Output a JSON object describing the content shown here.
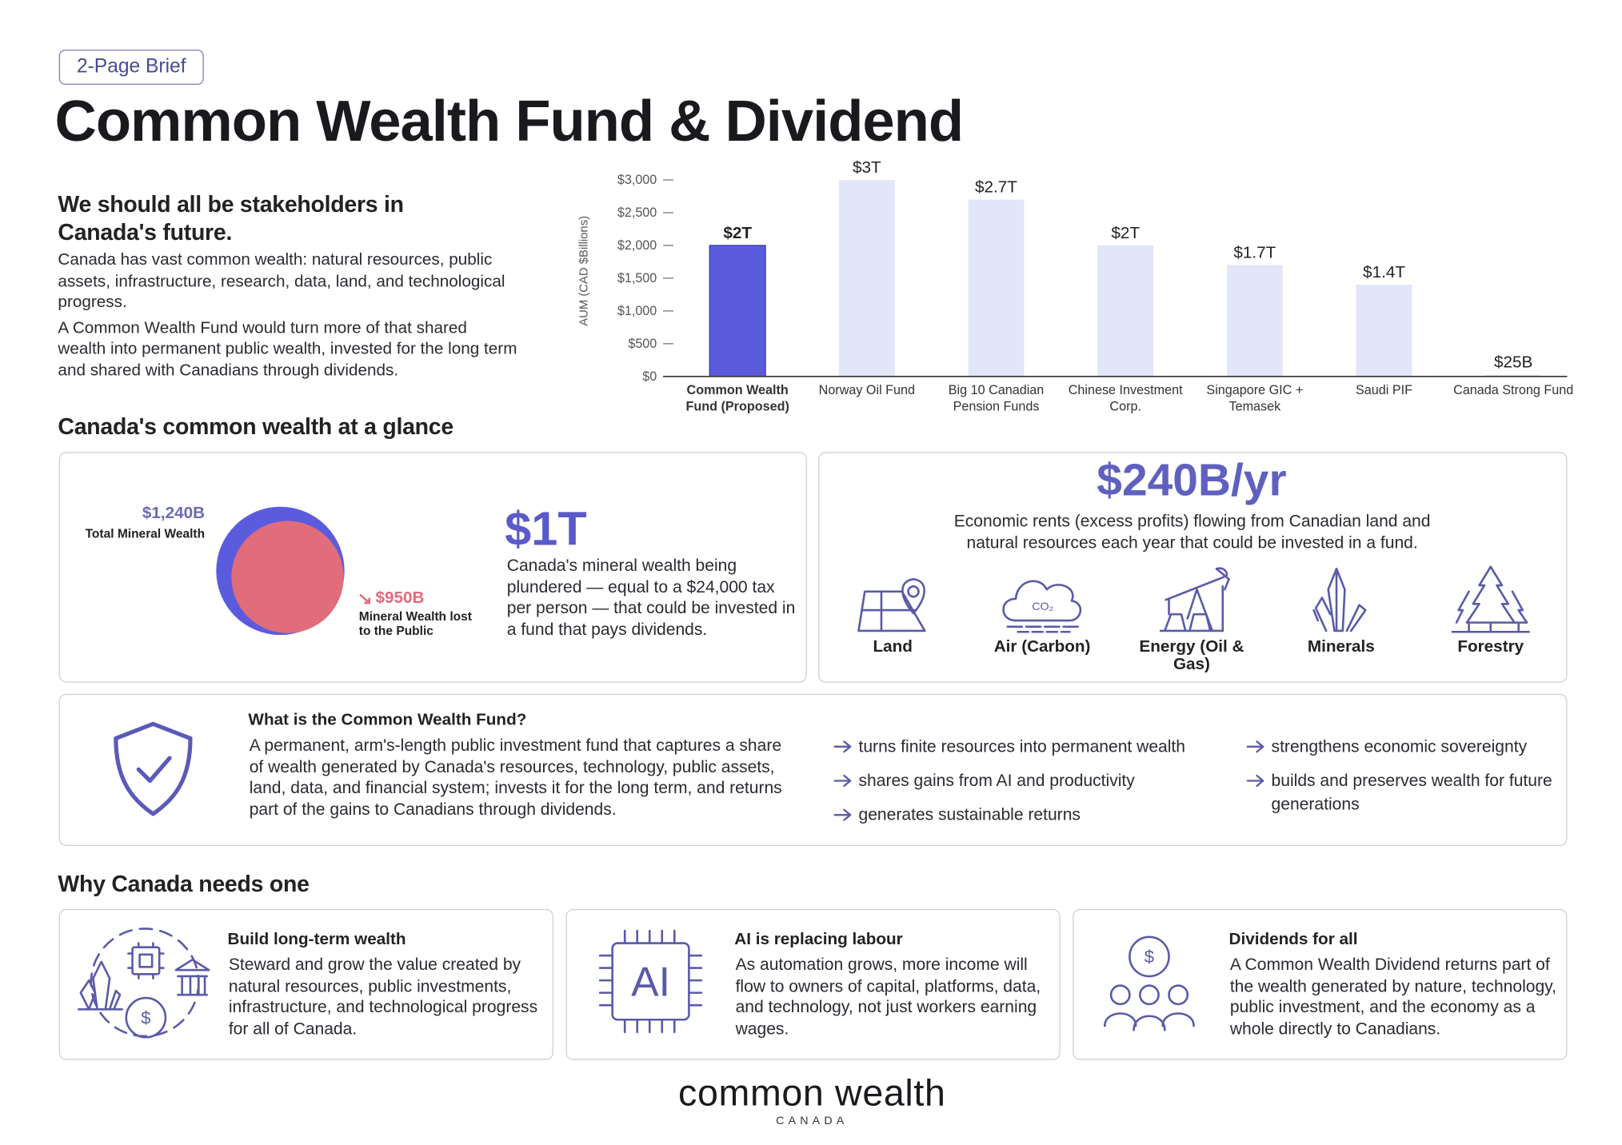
{
  "badge": "2-Page Brief",
  "title": "Common Wealth Fund & Dividend",
  "intro": {
    "heading": "We should all be stakeholders in Canada's future.",
    "paragraphs": [
      "Canada has vast common wealth: natural resources, public assets, infrastructure, research, data, land, and technological progress.",
      "A Common Wealth Fund would turn more of that shared wealth into permanent public wealth, invested for the long term and shared with Canadians through dividends."
    ]
  },
  "chart_data": {
    "type": "bar",
    "y_label": "AUM (CAD $Billions)",
    "categories": [
      "Common Wealth Fund (Proposed)",
      "Norway Oil Fund",
      "Big 10 Canadian Pension Funds",
      "Chinese Investment Corp.",
      "Singapore GIC + Temasek",
      "Saudi PIF",
      "Canada Strong Fund"
    ],
    "values": [
      2000,
      3000,
      2700,
      2000,
      1700,
      1400,
      25
    ],
    "value_labels": [
      "$2T",
      "$3T",
      "$2.7T",
      "$2T",
      "$1.7T",
      "$1.4T",
      "$25B"
    ],
    "colors": [
      "#5b5bde",
      "#e3e5f8",
      "#e3e5f8",
      "#e3e5f8",
      "#e3e5f8",
      "#e3e5f8",
      "#e3e5f8"
    ],
    "ylim": [
      0,
      3000
    ],
    "yticks": [
      {
        "value": 0,
        "label": "$0"
      },
      {
        "value": 500,
        "label": "$500"
      },
      {
        "value": 1000,
        "label": "$1,000"
      },
      {
        "value": 1500,
        "label": "$1,500"
      },
      {
        "value": 2000,
        "label": "$2,000"
      },
      {
        "value": 2500,
        "label": "$2,500"
      },
      {
        "value": 3000,
        "label": "$3,000"
      }
    ]
  },
  "glance": {
    "heading": "Canada's common wealth at a glance",
    "mineral": {
      "total": {
        "value": 1240,
        "label": "$1,240B"
      },
      "total_caption": "Total Mineral Wealth",
      "total_color": "#5b5bde",
      "lost": {
        "value": 950,
        "label": "$950B"
      },
      "lost_caption": "Mineral Wealth lost to the Public",
      "lost_color": "#e06c7c"
    },
    "stat": {
      "figure": "$1T",
      "text": "Canada's mineral wealth being plundered — equal to a $24,000 tax per person — that could be invested in a fund that pays dividends."
    },
    "rents": {
      "figure": "$240B/yr",
      "text": "Economic rents (excess profits) flowing from Canadian land and natural resources each year that could be invested in a fund.",
      "sources": [
        "Land",
        "Air (Carbon)",
        "Energy (Oil & Gas)",
        "Minerals",
        "Forestry"
      ],
      "icon_text": "CO₂"
    }
  },
  "fund": {
    "heading": "What is the Common Wealth Fund?",
    "text": "A permanent, arm's-length public investment fund that captures a share of wealth generated by Canada's resources, technology, public assets, land, data, and financial system; invests it for the long term, and returns part of the gains to Canadians through dividends.",
    "benefits": [
      "turns finite resources into permanent wealth",
      "shares gains from AI and productivity",
      "generates sustainable returns",
      "strengthens economic sovereignty",
      "builds and preserves wealth for future generations"
    ]
  },
  "why": {
    "heading": "Why Canada needs one",
    "icon_texts": {
      "coin": "$",
      "chip": "AI"
    },
    "cards": [
      {
        "title": "Build long-term wealth",
        "text": "Steward and grow the value created by natural resources, public investments, infrastructure, and technological progress for all of Canada."
      },
      {
        "title": "AI is replacing labour",
        "text": "As automation grows, more income will flow to owners of capital, platforms, data, and technology, not just workers earning wages."
      },
      {
        "title": "Dividends for all",
        "text": "A Common Wealth Dividend returns part of the wealth generated by nature, technology, public investment, and the economy as a whole directly to Canadians."
      }
    ]
  },
  "footer": {
    "logo": "common wealth",
    "sub": "CANADA"
  }
}
